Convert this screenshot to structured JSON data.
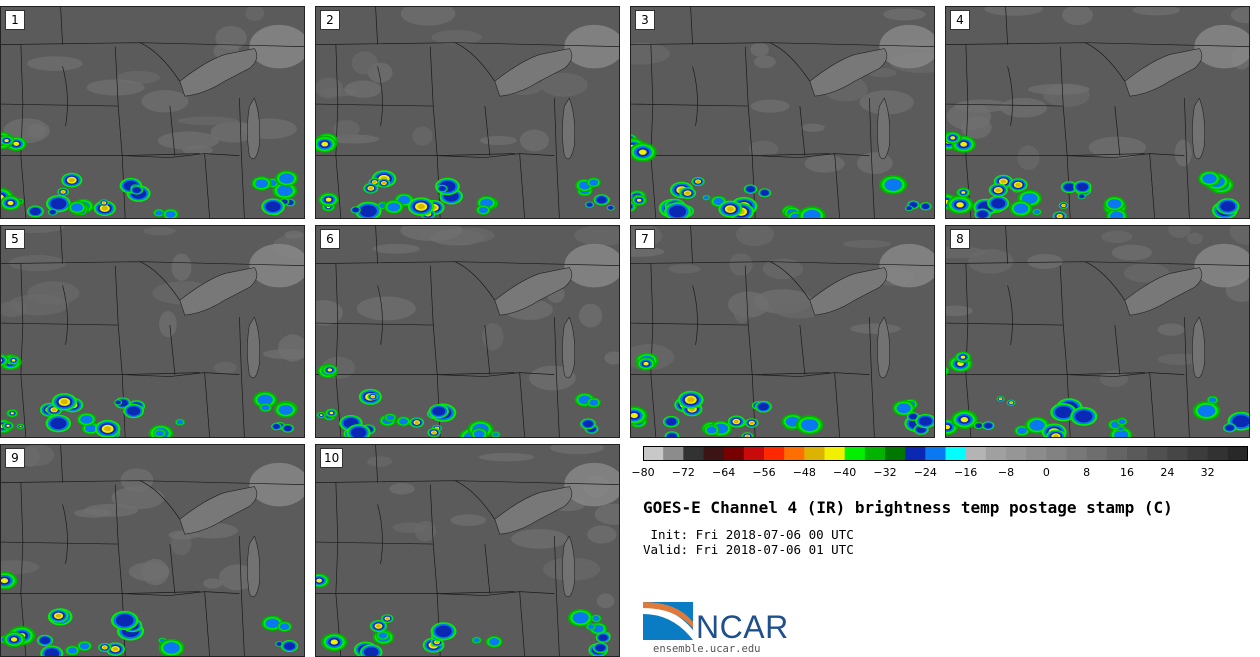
{
  "panels": [
    {
      "label": "1"
    },
    {
      "label": "2"
    },
    {
      "label": "3"
    },
    {
      "label": "4"
    },
    {
      "label": "5"
    },
    {
      "label": "6"
    },
    {
      "label": "7"
    },
    {
      "label": "8"
    },
    {
      "label": "9"
    },
    {
      "label": "10"
    }
  ],
  "colorbar": {
    "colors": [
      "#c8c8c8",
      "#8c8c8c",
      "#323232",
      "#3c1414",
      "#780000",
      "#c80a0a",
      "#ff2800",
      "#ff6e00",
      "#dcb400",
      "#f0f000",
      "#00f000",
      "#00b400",
      "#007800",
      "#0a28b4",
      "#0a78f0",
      "#00ffff",
      "#b4b4b4",
      "#a0a0a0",
      "#969696",
      "#8c8c8c",
      "#828282",
      "#787878",
      "#6e6e6e",
      "#646464",
      "#5a5a5a",
      "#505050",
      "#464646",
      "#3c3c3c",
      "#323232",
      "#282828"
    ],
    "tick_labels": [
      "−80",
      "−72",
      "−64",
      "−56",
      "−48",
      "−40",
      "−32",
      "−24",
      "−16",
      "−8",
      "0",
      "8",
      "16",
      "24",
      "32"
    ]
  },
  "title": "GOES-E Channel 4 (IR) brightness temp postage stamp (C)",
  "init": " Init: Fri 2018-07-06 00 UTC",
  "valid": "Valid: Fri 2018-07-06 01 UTC",
  "logo": {
    "text": "NCAR",
    "url": "ensemble.ucar.edu"
  }
}
